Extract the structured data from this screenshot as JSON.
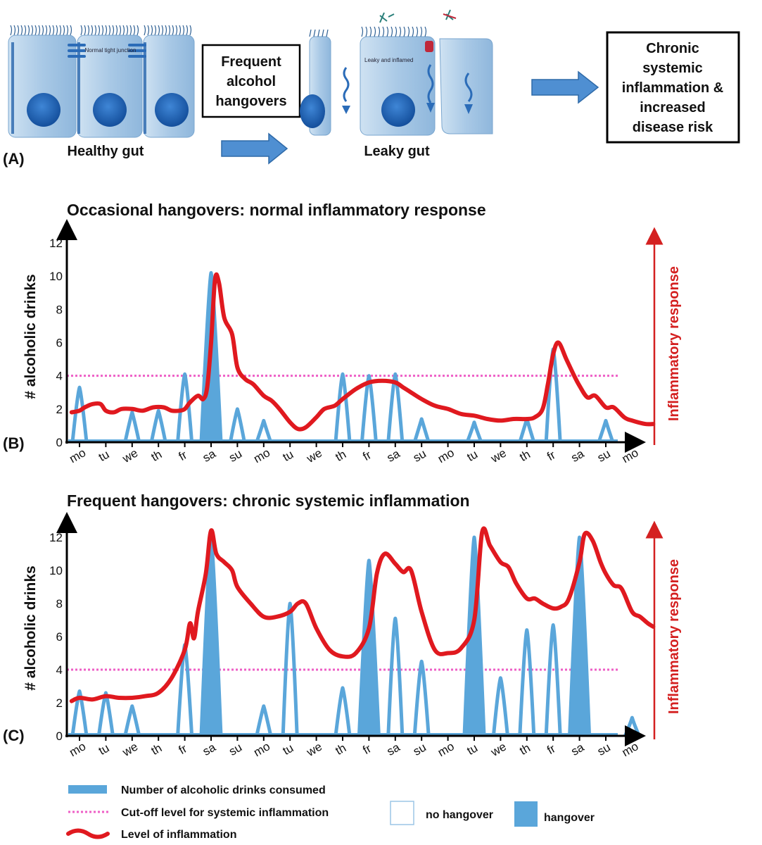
{
  "panel_a": {
    "label": "(A)",
    "healthy_label": "Healthy gut",
    "tight_junction_note": "Normal tight junction",
    "box1_lines": [
      "Frequent",
      "alcohol",
      "hangovers"
    ],
    "leaky_label": "Leaky gut",
    "leaky_note": "Leaky and inflamed",
    "box2_lines": [
      "Chronic",
      "systemic",
      "inflammation &",
      "increased",
      "disease risk"
    ],
    "colors": {
      "cell": "#b9d4ea",
      "nucleus": "#1f63b8",
      "arrow": "#4f8fd2"
    }
  },
  "chart_data": [
    {
      "panel_label": "(B)",
      "type": "area",
      "title": "Occasional hangovers: normal inflammatory response",
      "ylabel": "# alcoholic drinks",
      "right_label": "Inflammatory response",
      "ylim": [
        0,
        12
      ],
      "yticks": [
        "0",
        "2",
        "4",
        "6",
        "8",
        "10",
        "12"
      ],
      "categories": [
        "mo",
        "tu",
        "we",
        "th",
        "fr",
        "sa",
        "su",
        "mo",
        "tu",
        "we",
        "th",
        "fr",
        "sa",
        "su",
        "mo",
        "tu",
        "we",
        "th",
        "fr",
        "sa",
        "su",
        "mo"
      ],
      "cutoff": 4,
      "drink_events": [
        {
          "day": 0,
          "peak": 3.3
        },
        {
          "day": 2,
          "peak": 1.8
        },
        {
          "day": 3,
          "peak": 1.9
        },
        {
          "day": 4,
          "peak": 4.1
        },
        {
          "day": 5,
          "peak": 10.2,
          "hangover": true
        },
        {
          "day": 6,
          "peak": 2.0
        },
        {
          "day": 7,
          "peak": 1.3
        },
        {
          "day": 10,
          "peak": 4.1
        },
        {
          "day": 11,
          "peak": 4.0
        },
        {
          "day": 12,
          "peak": 4.1
        },
        {
          "day": 13,
          "peak": 1.4
        },
        {
          "day": 15,
          "peak": 1.2
        },
        {
          "day": 17,
          "peak": 1.4
        },
        {
          "day": 18,
          "peak": 5.6
        },
        {
          "day": 20,
          "peak": 1.3
        }
      ],
      "inflammation": {
        "x": [
          -0.3,
          0,
          0.2,
          0.5,
          0.8,
          1,
          1.3,
          1.6,
          2,
          2.4,
          2.8,
          3.2,
          3.5,
          3.8,
          4,
          4.2,
          4.5,
          4.7,
          4.85,
          5,
          5.15,
          5.3,
          5.5,
          5.8,
          6,
          6.3,
          6.6,
          7,
          7.3,
          7.6,
          8,
          8.3,
          8.6,
          9,
          9.3,
          9.7,
          10,
          10.5,
          11,
          11.5,
          12,
          12.3,
          12.6,
          13,
          13.5,
          14,
          14.5,
          15,
          15.5,
          16,
          16.5,
          17,
          17.3,
          17.6,
          17.8,
          18,
          18.2,
          18.5,
          18.8,
          19,
          19.3,
          19.6,
          20,
          20.3,
          20.7,
          21,
          21.5,
          21.8
        ],
        "y": [
          1.8,
          1.9,
          2.1,
          2.3,
          2.3,
          1.9,
          1.8,
          2.0,
          2.0,
          1.9,
          2.1,
          2.1,
          1.9,
          1.9,
          2.0,
          2.4,
          2.8,
          2.6,
          3.3,
          6.0,
          9.8,
          9.6,
          7.5,
          6.5,
          4.5,
          3.8,
          3.5,
          2.8,
          2.5,
          2.0,
          1.2,
          0.8,
          0.9,
          1.5,
          2.0,
          2.2,
          2.6,
          3.2,
          3.6,
          3.7,
          3.6,
          3.3,
          3.0,
          2.6,
          2.2,
          2.0,
          1.7,
          1.6,
          1.4,
          1.3,
          1.4,
          1.4,
          1.5,
          2.0,
          3.5,
          5.3,
          6.0,
          5.0,
          4.0,
          3.4,
          2.7,
          2.8,
          2.1,
          2.1,
          1.5,
          1.3,
          1.1,
          1.1
        ]
      }
    },
    {
      "panel_label": "(C)",
      "type": "area",
      "title": "Frequent hangovers: chronic systemic inflammation",
      "ylabel": "# alcoholic drinks",
      "right_label": "Inflammatory response",
      "ylim": [
        0,
        12
      ],
      "yticks": [
        "0",
        "2",
        "4",
        "6",
        "8",
        "10",
        "12"
      ],
      "categories": [
        "mo",
        "tu",
        "we",
        "th",
        "fr",
        "sa",
        "su",
        "mo",
        "tu",
        "we",
        "th",
        "fr",
        "sa",
        "su",
        "mo",
        "tu",
        "we",
        "th",
        "fr",
        "sa",
        "su",
        "mo"
      ],
      "cutoff": 4,
      "drink_events": [
        {
          "day": 0,
          "peak": 2.7
        },
        {
          "day": 1,
          "peak": 2.6
        },
        {
          "day": 2,
          "peak": 1.8
        },
        {
          "day": 4,
          "peak": 5.5
        },
        {
          "day": 5,
          "peak": 12.0,
          "hangover": true
        },
        {
          "day": 7,
          "peak": 1.8
        },
        {
          "day": 8,
          "peak": 8.0
        },
        {
          "day": 10,
          "peak": 2.9
        },
        {
          "day": 11,
          "peak": 10.6,
          "hangover": true
        },
        {
          "day": 12,
          "peak": 7.1
        },
        {
          "day": 13,
          "peak": 4.5
        },
        {
          "day": 15,
          "peak": 12.0,
          "hangover": true
        },
        {
          "day": 16,
          "peak": 3.5
        },
        {
          "day": 17,
          "peak": 6.4
        },
        {
          "day": 18,
          "peak": 6.7
        },
        {
          "day": 19,
          "peak": 12.0,
          "hangover": true
        },
        {
          "day": 21,
          "peak": 1.1
        }
      ],
      "inflammation": {
        "x": [
          -0.3,
          0,
          0.5,
          1,
          1.5,
          2,
          2.5,
          3,
          3.5,
          4,
          4.2,
          4.35,
          4.5,
          4.8,
          5,
          5.2,
          5.5,
          5.8,
          6,
          6.5,
          7,
          7.5,
          8,
          8.3,
          8.6,
          9,
          9.5,
          10,
          10.5,
          11,
          11.3,
          11.6,
          12,
          12.3,
          12.6,
          13,
          13.5,
          14,
          14.5,
          15,
          15.3,
          15.6,
          16,
          16.3,
          16.6,
          17,
          17.3,
          17.6,
          18,
          18.3,
          18.6,
          19,
          19.2,
          19.5,
          19.8,
          20,
          20.3,
          20.6,
          21,
          21.3,
          21.6,
          21.8
        ],
        "y": [
          2.1,
          2.3,
          2.2,
          2.4,
          2.3,
          2.3,
          2.4,
          2.6,
          3.5,
          5.2,
          6.8,
          5.9,
          7.5,
          9.8,
          12.4,
          11.0,
          10.5,
          10.0,
          9.0,
          8.0,
          7.2,
          7.2,
          7.5,
          8.0,
          8.0,
          6.5,
          5.2,
          4.8,
          5.0,
          6.5,
          9.8,
          11.0,
          10.4,
          9.9,
          10.0,
          7.5,
          5.2,
          5.0,
          5.3,
          7.0,
          12.3,
          11.5,
          10.5,
          10.2,
          9.2,
          8.3,
          8.3,
          8.0,
          7.7,
          7.8,
          8.3,
          10.5,
          12.2,
          11.8,
          10.5,
          9.8,
          9.1,
          8.9,
          7.5,
          7.2,
          6.8,
          6.6
        ]
      }
    }
  ],
  "legend": {
    "drinks": "Number of alcoholic drinks consumed",
    "cutoff": "Cut-off level for systemic inflammation",
    "inflammation": "Level of inflammation",
    "no_hangover": "no hangover",
    "hangover": "hangover"
  },
  "colors": {
    "drinks": "#5aa6da",
    "drinks_fill": "#5aa6da",
    "inflammation": "#e0191f",
    "cutoff": "#ee5fc6",
    "axis": "#000000",
    "right_arrow": "#d42020"
  }
}
